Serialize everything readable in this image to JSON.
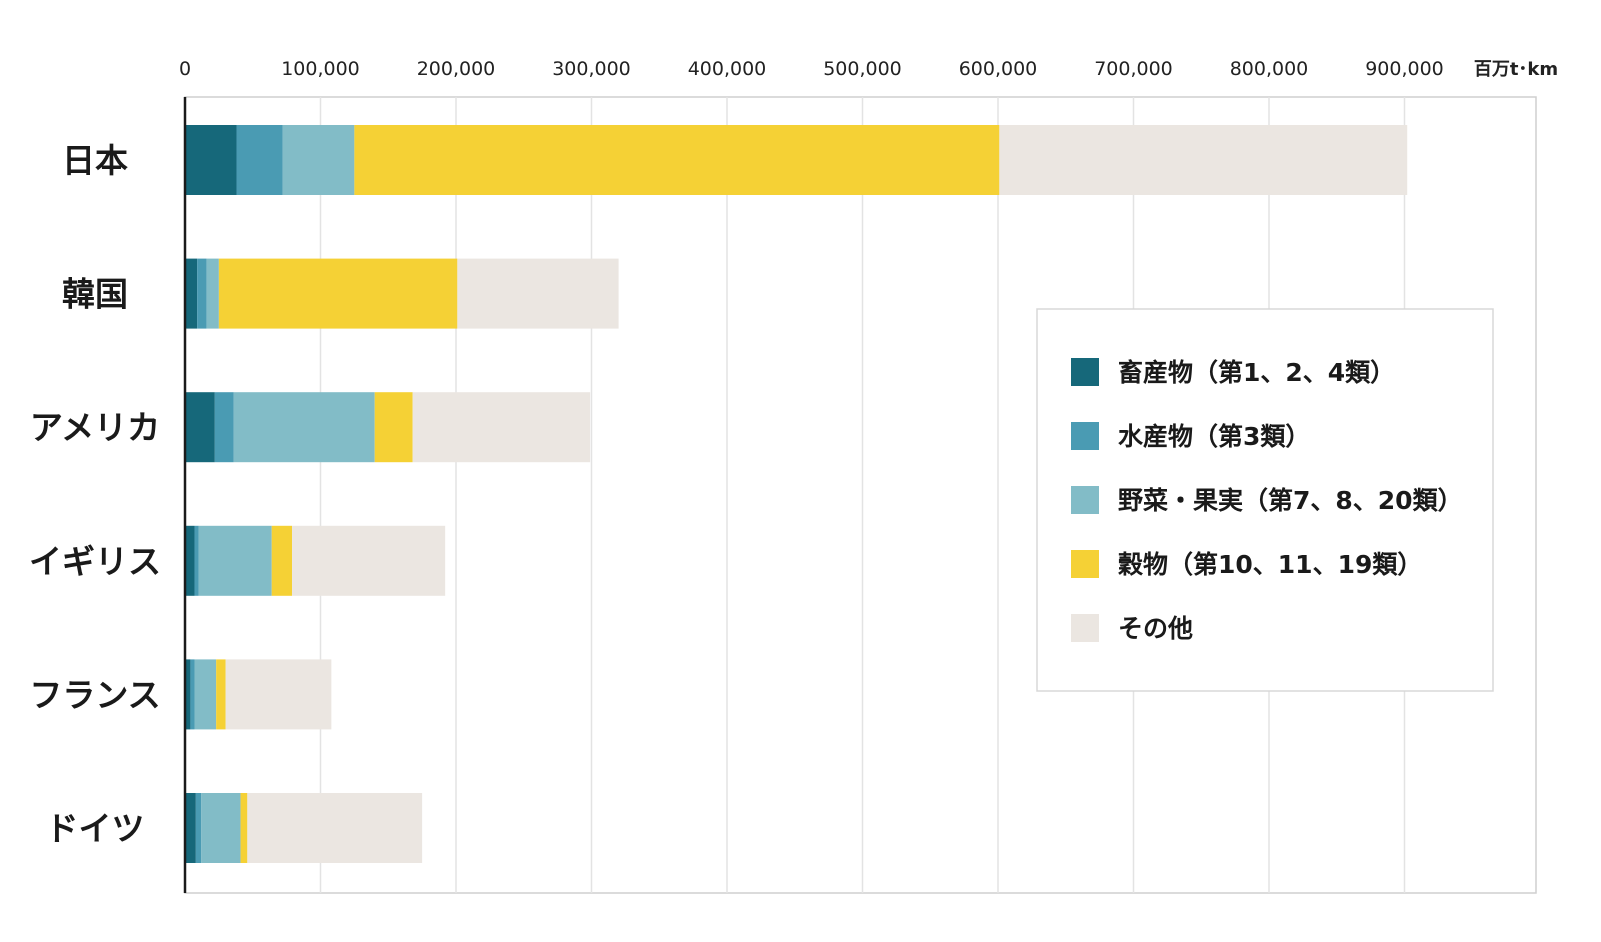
{
  "chart_data": {
    "type": "bar",
    "orientation": "horizontal",
    "stacked": true,
    "categories": [
      "日本",
      "韓国",
      "アメリカ",
      "イギリス",
      "フランス",
      "ドイツ"
    ],
    "series": [
      {
        "name": "畜産物（第1、2、4類）",
        "color": "#16687a",
        "values": [
          38000,
          9000,
          22000,
          7000,
          4000,
          8000
        ]
      },
      {
        "name": "水産物（第3類）",
        "color": "#4a9bb3",
        "values": [
          34000,
          7000,
          14000,
          3000,
          3000,
          4000
        ]
      },
      {
        "name": "野菜・果実（第7、8、20類）",
        "color": "#82bcc7",
        "values": [
          53000,
          9000,
          104000,
          54000,
          16000,
          29000
        ]
      },
      {
        "name": "穀物（第10、11、19類）",
        "color": "#f5d135",
        "values": [
          476000,
          176000,
          28000,
          15000,
          7000,
          5000
        ]
      },
      {
        "name": "その他",
        "color": "#ebe6e1",
        "values": [
          301000,
          119000,
          131000,
          113000,
          78000,
          129000
        ]
      }
    ],
    "x_ticks": [
      "0",
      "100,000",
      "200,000",
      "300,000",
      "400,000",
      "500,000",
      "600,000",
      "700,000",
      "800,000",
      "900,000"
    ],
    "xlim": [
      0,
      1000000
    ],
    "unit": "百万t･km",
    "grid": true,
    "legend_position": "right-center"
  }
}
